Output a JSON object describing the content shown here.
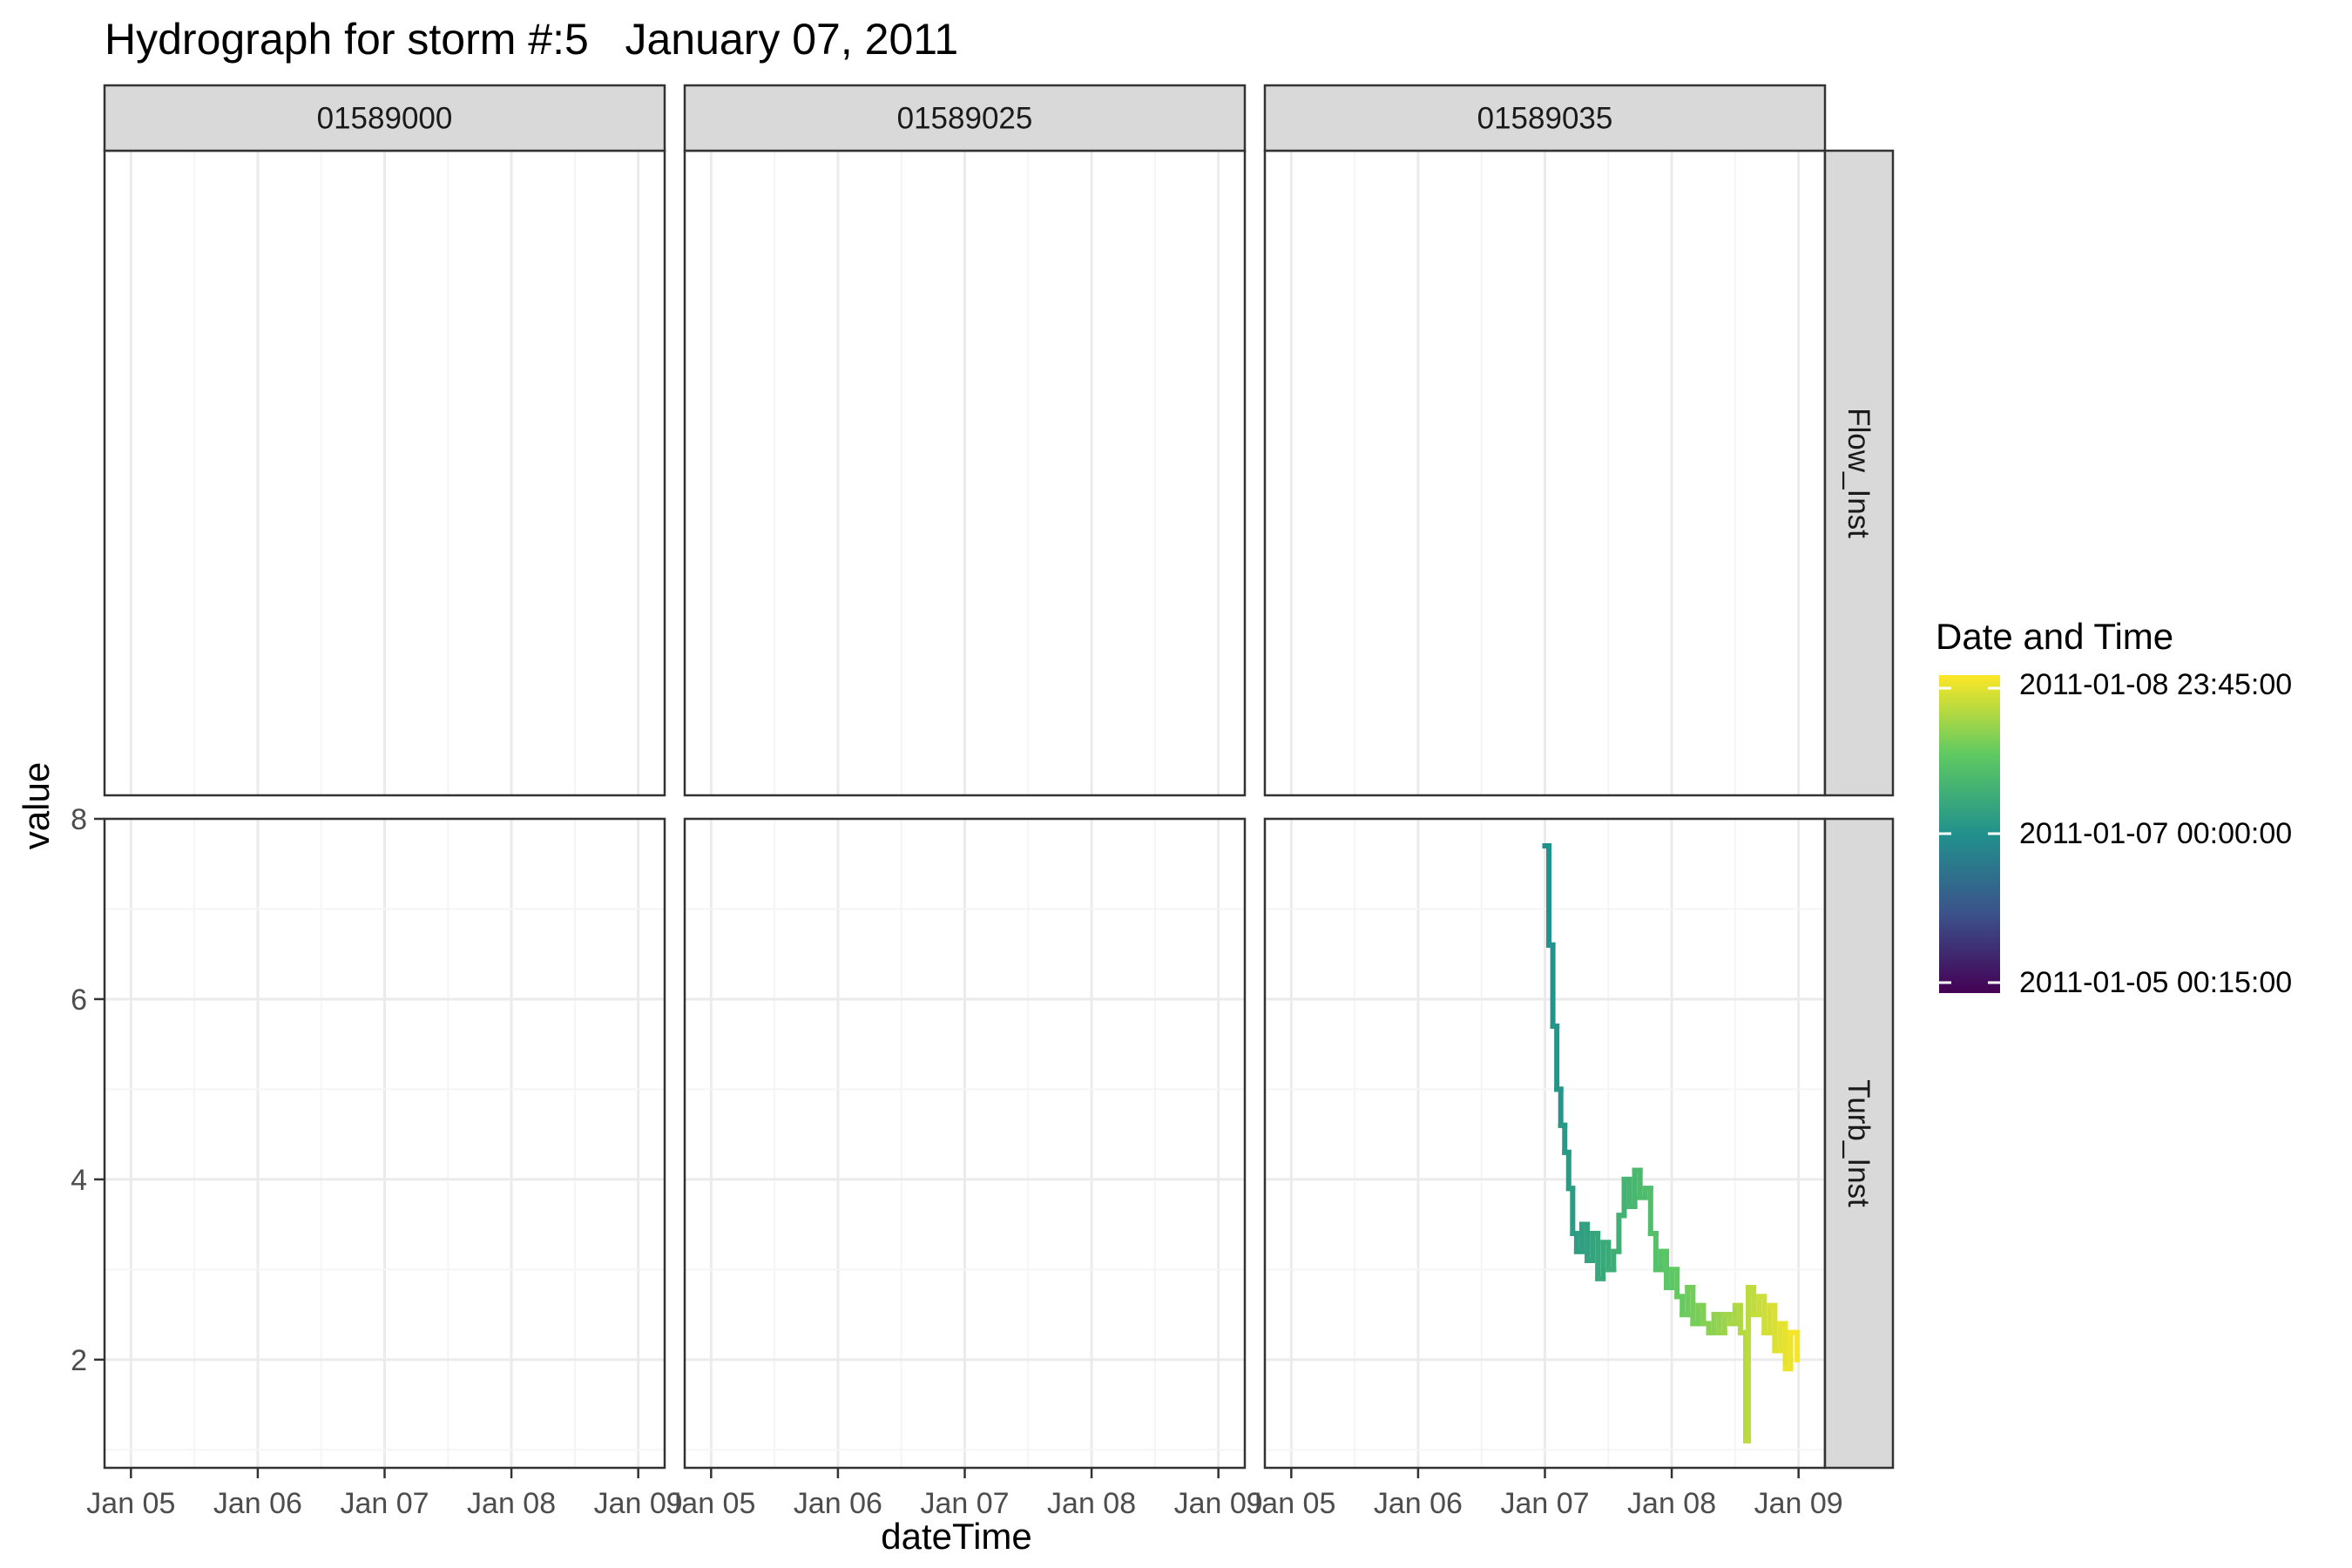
{
  "title": "Hydrograph for storm #:5   January 07, 2011",
  "colors": {
    "strip_fill": "#d9d9d9",
    "panel_border": "#333333",
    "grid_major": "#ebebeb",
    "grid_minor": "#f5f5f5",
    "viridis": [
      "#440154",
      "#3b528b",
      "#21918c",
      "#5ec962",
      "#fde725"
    ]
  },
  "chart_data": {
    "type": "line",
    "facets": {
      "columns": [
        "01589000",
        "01589025",
        "01589035"
      ],
      "rows": [
        "Flow_Inst",
        "Turb_Inst"
      ]
    },
    "xlabel": "dateTime",
    "ylabel": "value",
    "x_ticks": [
      "Jan 05",
      "Jan 06",
      "Jan 07",
      "Jan 08",
      "Jan 09"
    ],
    "xlim": [
      "2011-01-04T19:00",
      "2011-01-09T05:00"
    ],
    "ylim_turb": [
      0.8,
      8.0
    ],
    "y_ticks_turb": [
      2,
      4,
      6,
      8
    ],
    "grid": true,
    "legend": {
      "title": "Date and Time",
      "position": "right",
      "labels": [
        "2011-01-08 23:45:00",
        "2011-01-07 00:00:00",
        "2011-01-05 00:15:00"
      ]
    },
    "series": [
      {
        "column": "01589035",
        "row": "Turb_Inst",
        "points": [
          [
            "2011-01-07T00:00",
            7.7
          ],
          [
            "2011-01-07T00:45",
            6.6
          ],
          [
            "2011-01-07T01:30",
            5.7
          ],
          [
            "2011-01-07T02:15",
            5.0
          ],
          [
            "2011-01-07T03:00",
            4.6
          ],
          [
            "2011-01-07T03:45",
            4.3
          ],
          [
            "2011-01-07T04:30",
            3.9
          ],
          [
            "2011-01-07T05:15",
            3.4
          ],
          [
            "2011-01-07T06:00",
            3.2
          ],
          [
            "2011-01-07T07:00",
            3.5
          ],
          [
            "2011-01-07T08:00",
            3.1
          ],
          [
            "2011-01-07T09:00",
            3.4
          ],
          [
            "2011-01-07T10:00",
            2.9
          ],
          [
            "2011-01-07T11:00",
            3.3
          ],
          [
            "2011-01-07T12:00",
            3.0
          ],
          [
            "2011-01-07T13:00",
            3.2
          ],
          [
            "2011-01-07T14:00",
            3.6
          ],
          [
            "2011-01-07T15:00",
            4.0
          ],
          [
            "2011-01-07T16:00",
            3.7
          ],
          [
            "2011-01-07T17:00",
            4.1
          ],
          [
            "2011-01-07T18:00",
            3.8
          ],
          [
            "2011-01-07T19:00",
            3.9
          ],
          [
            "2011-01-07T20:00",
            3.4
          ],
          [
            "2011-01-07T21:00",
            3.0
          ],
          [
            "2011-01-07T22:00",
            3.2
          ],
          [
            "2011-01-07T23:00",
            2.8
          ],
          [
            "2011-01-08T00:00",
            3.0
          ],
          [
            "2011-01-08T01:00",
            2.7
          ],
          [
            "2011-01-08T02:00",
            2.5
          ],
          [
            "2011-01-08T03:00",
            2.8
          ],
          [
            "2011-01-08T04:00",
            2.4
          ],
          [
            "2011-01-08T05:00",
            2.6
          ],
          [
            "2011-01-08T06:00",
            2.4
          ],
          [
            "2011-01-08T07:00",
            2.3
          ],
          [
            "2011-01-08T08:00",
            2.5
          ],
          [
            "2011-01-08T09:00",
            2.3
          ],
          [
            "2011-01-08T10:00",
            2.5
          ],
          [
            "2011-01-08T11:00",
            2.4
          ],
          [
            "2011-01-08T12:00",
            2.6
          ],
          [
            "2011-01-08T13:00",
            2.3
          ],
          [
            "2011-01-08T14:00",
            1.1
          ],
          [
            "2011-01-08T14:30",
            2.8
          ],
          [
            "2011-01-08T15:30",
            2.5
          ],
          [
            "2011-01-08T16:30",
            2.7
          ],
          [
            "2011-01-08T17:30",
            2.3
          ],
          [
            "2011-01-08T18:30",
            2.6
          ],
          [
            "2011-01-08T19:30",
            2.1
          ],
          [
            "2011-01-08T20:30",
            2.4
          ],
          [
            "2011-01-08T21:30",
            1.9
          ],
          [
            "2011-01-08T22:30",
            2.3
          ],
          [
            "2011-01-08T23:45",
            2.0
          ]
        ]
      }
    ]
  }
}
